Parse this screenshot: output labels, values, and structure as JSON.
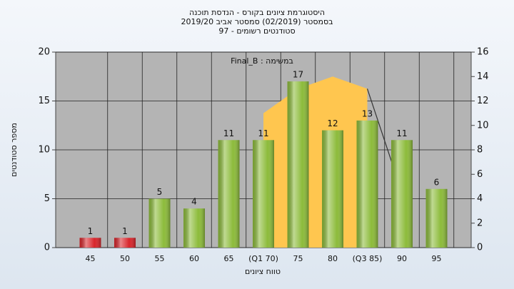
{
  "chart_data": {
    "type": "bar",
    "title": [
      "היסטוגרמת ציונים בקורס - הנדסת תוכנה",
      "בסמסטר  (02/2019)  סמסטר אביב 2019/20",
      "סטודנטים רשומים - 97"
    ],
    "annotation": "Final_B : במשימה",
    "x_label": "טווח ציונים",
    "y_label": "מספר סטודנטים",
    "categories": [
      "45",
      "50",
      "55",
      "60",
      "65",
      "(Q1 70)",
      "75",
      "80",
      "(Q3 85)",
      "90",
      "95"
    ],
    "values": [
      1,
      1,
      5,
      4,
      11,
      11,
      17,
      12,
      13,
      11,
      6
    ],
    "colors": [
      "#d8252b",
      "#d8252b",
      "#8cbb3a",
      "#8cbb3a",
      "#8cbb3a",
      "#8cbb3a",
      "#8cbb3a",
      "#8cbb3a",
      "#8cbb3a",
      "#8cbb3a",
      "#8cbb3a"
    ],
    "series": [
      {
        "type": "area",
        "axis": "y2",
        "color": "#ffc64f",
        "values": [
          null,
          null,
          null,
          null,
          null,
          11,
          13,
          14,
          13,
          null,
          null
        ]
      },
      {
        "type": "line",
        "axis": "y2",
        "color": "#333333",
        "values": [
          null,
          null,
          null,
          null,
          null,
          null,
          null,
          null,
          13,
          4.5,
          null
        ]
      }
    ],
    "ylim": [
      0,
      20
    ],
    "yticks": [
      0,
      5,
      10,
      15,
      20
    ],
    "y2lim": [
      0,
      16
    ],
    "y2ticks": [
      0,
      2,
      4,
      6,
      8,
      10,
      12,
      14,
      16
    ],
    "grid": true
  }
}
